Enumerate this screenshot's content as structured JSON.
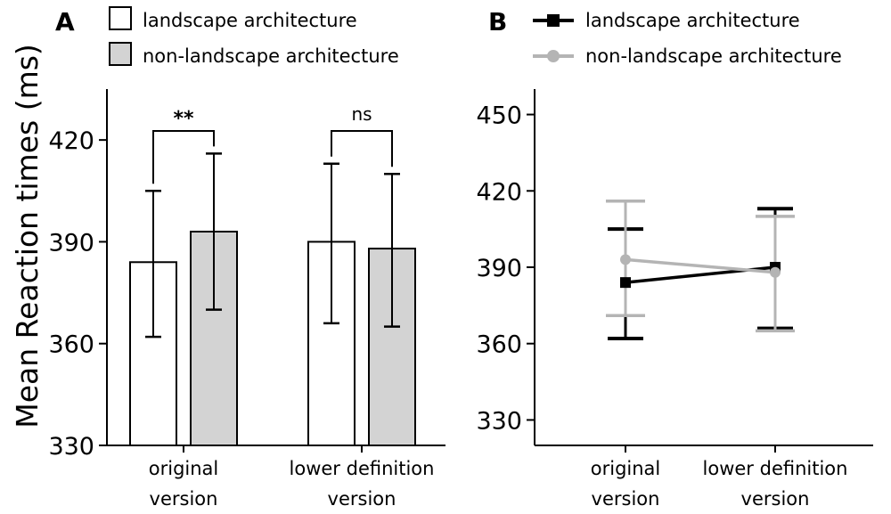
{
  "figure": {
    "ylabel": "Mean Reaction times (ms)"
  },
  "chart_data": [
    {
      "panel": "A",
      "type": "bar",
      "categories": [
        [
          "original",
          "version"
        ],
        [
          "lower definition",
          "version"
        ]
      ],
      "ylim": [
        330,
        435
      ],
      "yticks": [
        330,
        360,
        390,
        420
      ],
      "ylabel": "Mean Reaction times (ms)",
      "legend_position": "top",
      "series": [
        {
          "name": "landscape architecture",
          "fill": "#ffffff",
          "values": [
            384,
            390
          ],
          "error_low": [
            362,
            366
          ],
          "error_high": [
            405,
            413
          ]
        },
        {
          "name": "non-landscape architecture",
          "fill": "#d3d3d3",
          "values": [
            393,
            388
          ],
          "error_low": [
            370,
            365
          ],
          "error_high": [
            416,
            410
          ]
        }
      ],
      "annotations": [
        "**",
        "ns"
      ]
    },
    {
      "panel": "B",
      "type": "line",
      "categories": [
        [
          "original",
          "version"
        ],
        [
          "lower definition",
          "version"
        ]
      ],
      "ylim": [
        320,
        460
      ],
      "yticks": [
        330,
        360,
        390,
        420,
        450
      ],
      "legend_position": "top",
      "series": [
        {
          "name": "landscape architecture",
          "color": "#000000",
          "marker": "square",
          "values": [
            384,
            390
          ],
          "error_low": [
            362,
            366
          ],
          "error_high": [
            405,
            413
          ]
        },
        {
          "name": "non-landscape architecture",
          "color": "#b4b4b4",
          "marker": "circle",
          "values": [
            393,
            388
          ],
          "error_low": [
            371,
            365
          ],
          "error_high": [
            416,
            410
          ]
        }
      ]
    }
  ]
}
